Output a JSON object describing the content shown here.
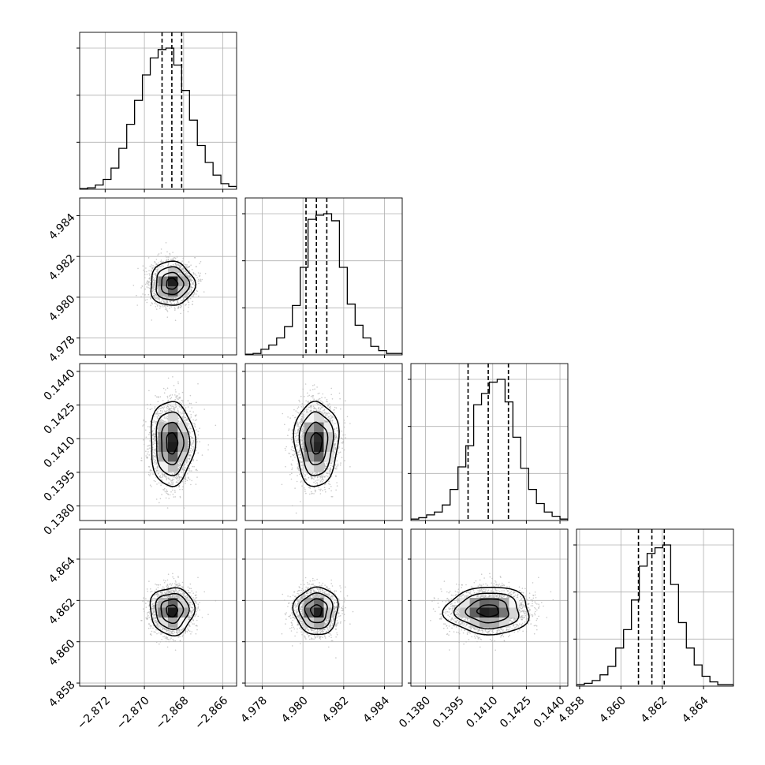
{
  "chart_data": {
    "type": "corner",
    "title": "",
    "n_params": 4,
    "params": [
      {
        "index": 0,
        "median": -2.8686,
        "quantiles": [
          -2.8691,
          -2.8686,
          -2.8681
        ],
        "range": [
          -2.8733,
          -2.8653
        ],
        "ticks": [
          -2.872,
          -2.87,
          -2.868,
          -2.866
        ],
        "tick_labels": [
          "−2.872",
          "−2.870",
          "−2.868",
          "−2.866"
        ],
        "sigma_frac": 0.065
      },
      {
        "index": 1,
        "median": 4.98066,
        "quantiles": [
          4.98015,
          4.98066,
          4.98117
        ],
        "range": [
          4.97717,
          4.98487
        ],
        "ticks": [
          4.978,
          4.98,
          4.982,
          4.984
        ],
        "tick_labels": [
          "4.978",
          "4.980",
          "4.982",
          "4.984"
        ],
        "sigma_frac": 0.065
      },
      {
        "index": 2,
        "median": 0.1408,
        "quantiles": [
          0.1399,
          0.1408,
          0.1417
        ],
        "range": [
          0.13735,
          0.14435
        ],
        "ticks": [
          0.138,
          0.1395,
          0.141,
          0.1425,
          0.144
        ],
        "tick_labels": [
          "0.1380",
          "0.1395",
          "0.1410",
          "0.1425",
          "0.1440"
        ],
        "sigma_frac": 0.125
      },
      {
        "index": 3,
        "median": 4.8615,
        "quantiles": [
          4.86085,
          4.8615,
          4.8621
        ],
        "range": [
          4.85785,
          4.86545
        ],
        "ticks": [
          4.858,
          4.86,
          4.862,
          4.864
        ],
        "tick_labels": [
          "4.858",
          "4.860",
          "4.862",
          "4.864"
        ],
        "sigma_frac": 0.07
      }
    ],
    "histograms": [
      [
        0.005,
        0.01,
        0.03,
        0.07,
        0.15,
        0.29,
        0.46,
        0.63,
        0.81,
        0.93,
        0.99,
        1.0,
        0.88,
        0.7,
        0.49,
        0.31,
        0.19,
        0.1,
        0.04,
        0.02
      ],
      [
        0.005,
        0.01,
        0.04,
        0.07,
        0.12,
        0.2,
        0.35,
        0.62,
        0.96,
        0.99,
        1.0,
        0.95,
        0.62,
        0.36,
        0.21,
        0.12,
        0.06,
        0.03,
        0.01,
        0.01
      ],
      [
        0.01,
        0.02,
        0.04,
        0.06,
        0.11,
        0.22,
        0.38,
        0.53,
        0.82,
        0.9,
        0.98,
        1.0,
        0.84,
        0.59,
        0.37,
        0.22,
        0.12,
        0.06,
        0.03,
        0.01
      ],
      [
        0.01,
        0.02,
        0.04,
        0.08,
        0.14,
        0.27,
        0.4,
        0.61,
        0.85,
        0.94,
        0.98,
        1.0,
        0.72,
        0.45,
        0.27,
        0.15,
        0.07,
        0.03,
        0.01,
        0.01
      ]
    ],
    "hist_bins": 20,
    "quantile_levels": [
      0.16,
      0.5,
      0.84
    ],
    "contour_levels": [
      0.5,
      1.0,
      1.5,
      2.0
    ],
    "sample_points": 2500,
    "grid": true,
    "colors": {
      "line": "#000000",
      "points": "#b4b4b4",
      "grid": "#b0b0b0",
      "density_max": "#000000",
      "density_min": "#ffffff"
    }
  }
}
